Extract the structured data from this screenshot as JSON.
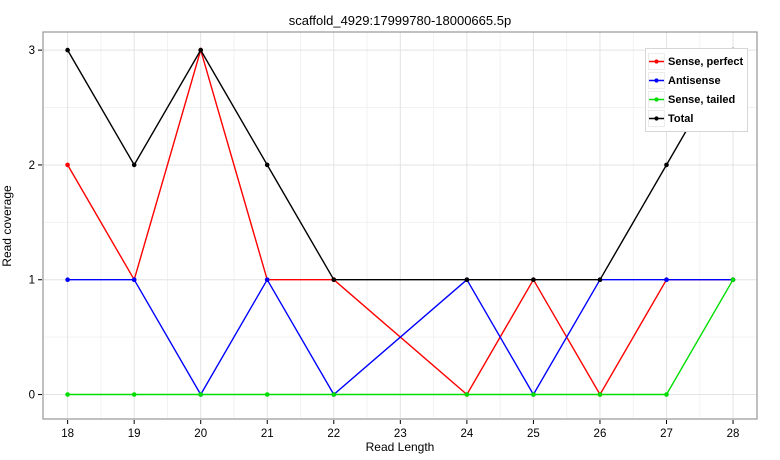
{
  "chart_data": {
    "type": "line",
    "title": "scaffold_4929:17999780-18000665.5p",
    "xlabel": "Read Length",
    "ylabel": "Read coverage",
    "x_ticks": [
      18,
      19,
      20,
      21,
      22,
      23,
      24,
      25,
      26,
      27,
      28
    ],
    "y_ticks": [
      0,
      1,
      2,
      3
    ],
    "xlim": [
      17.63,
      28.36
    ],
    "ylim": [
      -0.213,
      3.158
    ],
    "grid": "major and minor gridlines on, light gray",
    "legend_position": "top-right",
    "panel_border_color": "#969696",
    "major_grid_color": "#e3e3e3",
    "minor_grid_color": "#f2f2f2",
    "series": [
      {
        "name": "Sense, perfect",
        "color": "#ff0000",
        "points": [
          [
            18,
            2
          ],
          [
            19,
            1
          ],
          [
            20,
            3
          ],
          [
            21,
            1
          ],
          [
            22,
            1
          ],
          [
            24,
            0
          ],
          [
            25,
            1
          ],
          [
            26,
            0
          ],
          [
            27,
            1
          ],
          [
            28,
            1
          ]
        ]
      },
      {
        "name": "Antisense",
        "color": "#0000ff",
        "points": [
          [
            18,
            1
          ],
          [
            19,
            1
          ],
          [
            20,
            0
          ],
          [
            21,
            1
          ],
          [
            22,
            0
          ],
          [
            24,
            1
          ],
          [
            25,
            0
          ],
          [
            26,
            1
          ],
          [
            27,
            1
          ],
          [
            28,
            1
          ]
        ]
      },
      {
        "name": "Sense, tailed",
        "color": "#00dd00",
        "points": [
          [
            18,
            0
          ],
          [
            19,
            0
          ],
          [
            20,
            0
          ],
          [
            21,
            0
          ],
          [
            22,
            0
          ],
          [
            24,
            0
          ],
          [
            25,
            0
          ],
          [
            26,
            0
          ],
          [
            27,
            0
          ],
          [
            28,
            1
          ]
        ]
      },
      {
        "name": "Total",
        "color": "#000000",
        "points": [
          [
            18,
            3
          ],
          [
            19,
            2
          ],
          [
            20,
            3
          ],
          [
            21,
            2
          ],
          [
            22,
            1
          ],
          [
            24,
            1
          ],
          [
            25,
            1
          ],
          [
            26,
            1
          ],
          [
            27,
            2
          ],
          [
            28,
            3
          ]
        ]
      }
    ]
  }
}
